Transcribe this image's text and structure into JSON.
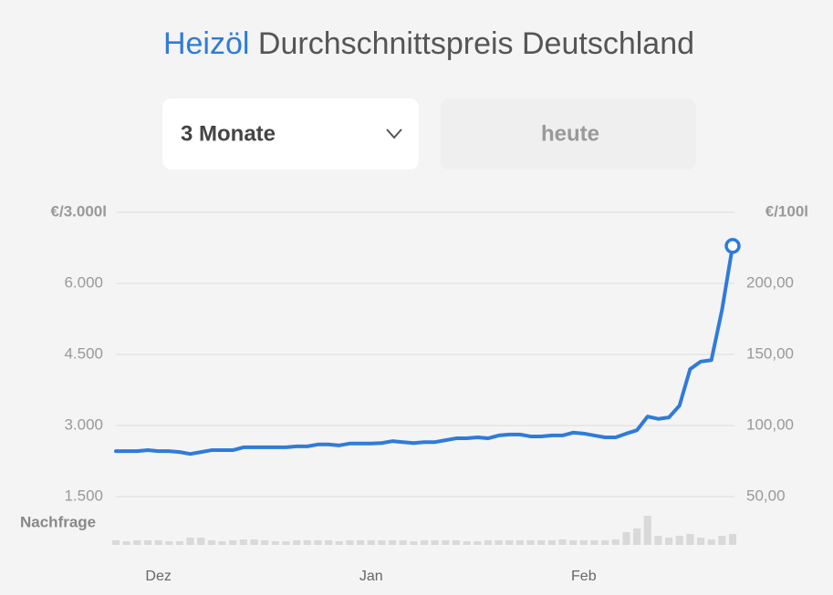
{
  "chart_data": {
    "type": "line",
    "title_highlight": "Heizöl",
    "title": "Durchschnittspreis Deutschland",
    "controls": {
      "range": "3 Monate",
      "date_button": "heute"
    },
    "ylabel": "€/3.000l",
    "y2label": "€/100l",
    "categories": [
      null,
      null,
      null,
      null,
      "Dez",
      null,
      null,
      null,
      null,
      null,
      null,
      null,
      null,
      null,
      null,
      null,
      null,
      null,
      null,
      null,
      null,
      null,
      null,
      null,
      "Jan",
      null,
      null,
      null,
      null,
      null,
      null,
      null,
      null,
      null,
      null,
      null,
      null,
      null,
      null,
      null,
      null,
      null,
      null,
      null,
      "Feb",
      null,
      null,
      null,
      null,
      null,
      null,
      null,
      null,
      null,
      null,
      null,
      null,
      null,
      null
    ],
    "series": [
      {
        "color": "#2f7bd9",
        "values": [
          2460,
          2460,
          2460,
          2480,
          2460,
          2460,
          2440,
          2400,
          2440,
          2480,
          2480,
          2480,
          2540,
          2540,
          2540,
          2540,
          2540,
          2560,
          2560,
          2600,
          2600,
          2580,
          2620,
          2620,
          2620,
          2630,
          2670,
          2650,
          2630,
          2650,
          2650,
          2690,
          2730,
          2730,
          2750,
          2730,
          2790,
          2810,
          2810,
          2770,
          2770,
          2790,
          2790,
          2850,
          2830,
          2790,
          2750,
          2750,
          2830,
          2900,
          3190,
          3140,
          3170,
          3420,
          4190,
          4350,
          4380,
          5440,
          6790
        ]
      }
    ],
    "ylim": [
      1500,
      7500
    ],
    "yticks": [
      {
        "value": 1500,
        "label": "1.500"
      },
      {
        "value": 3000,
        "label": "3.000"
      },
      {
        "value": 4500,
        "label": "4.500"
      },
      {
        "value": 6000,
        "label": "6.000"
      }
    ],
    "y2lim": [
      50,
      250
    ],
    "y2ticks": [
      {
        "value": 50,
        "label": "50,00"
      },
      {
        "value": 100,
        "label": "100,00"
      },
      {
        "value": 150,
        "label": "150,00"
      },
      {
        "value": 200,
        "label": "200,00"
      }
    ],
    "grid": true,
    "demand": {
      "label": "Nachfrage",
      "color": "#d9d9d9",
      "values": [
        5,
        4,
        5,
        5,
        5,
        4,
        4,
        8,
        8,
        5,
        4,
        5,
        6,
        6,
        5,
        4,
        4,
        5,
        5,
        5,
        5,
        4,
        5,
        5,
        5,
        5,
        5,
        5,
        4,
        5,
        5,
        5,
        5,
        4,
        4,
        5,
        5,
        5,
        5,
        5,
        5,
        5,
        6,
        5,
        5,
        5,
        5,
        6,
        14,
        18,
        32,
        10,
        8,
        10,
        12,
        8,
        6,
        10,
        12
      ]
    }
  }
}
